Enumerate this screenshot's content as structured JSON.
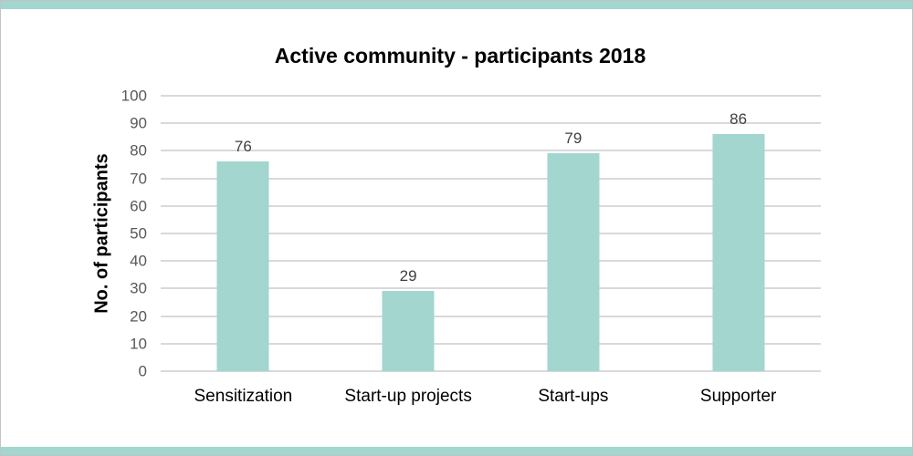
{
  "window": {
    "background": "#ffffff",
    "border_color": "#c3c3c3",
    "top_band_color": "#a2d6cf",
    "bottom_band_color": "#a2d6cf"
  },
  "chart_data": {
    "type": "bar",
    "title": "Active community - participants 2018",
    "categories": [
      "Sensitization",
      "Start-up projects",
      "Start-ups",
      "Supporter"
    ],
    "values": [
      76,
      29,
      79,
      86
    ],
    "data_labels": [
      "76",
      "29",
      "79",
      "86"
    ],
    "xlabel": "",
    "ylabel": "No. of participants",
    "ylim": [
      0,
      100
    ],
    "yticks": [
      0,
      10,
      20,
      30,
      40,
      50,
      60,
      70,
      80,
      90,
      100
    ],
    "grid": true,
    "legend_position": "none",
    "bar_color": "#a2d6cf",
    "gridline_color": "#d9d9d9",
    "tick_label_color": "#595959",
    "value_label_color": "#404040",
    "category_label_color": "#000000",
    "title_color": "#000000"
  }
}
